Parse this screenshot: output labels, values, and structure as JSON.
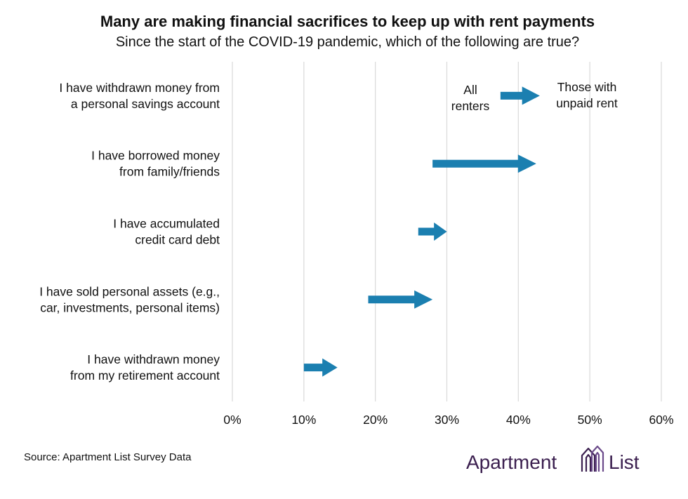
{
  "chart_data": {
    "type": "arrow",
    "title": "Many are making financial sacrifices to keep up with rent payments",
    "subtitle": "Since the start of the COVID-19 pandemic, which of the following are true?",
    "xlim": [
      0,
      60
    ],
    "x_ticks": [
      "0%",
      "10%",
      "20%",
      "30%",
      "40%",
      "50%",
      "60%"
    ],
    "grid": "vertical",
    "series": [
      {
        "name": "All renters"
      },
      {
        "name": "Those with unpaid rent"
      }
    ],
    "categories": [
      {
        "label_lines": [
          "I have withdrawn money from",
          "a personal savings account"
        ],
        "start": 37.5,
        "end": 43
      },
      {
        "label_lines": [
          "I have borrowed money",
          "from family/friends"
        ],
        "start": 28,
        "end": 42.5
      },
      {
        "label_lines": [
          "I have accumulated",
          "credit card debt"
        ],
        "start": 26,
        "end": 30
      },
      {
        "label_lines": [
          "I have sold personal assets (e.g.,",
          "car, investments, personal items)"
        ],
        "start": 19,
        "end": 28
      },
      {
        "label_lines": [
          "I have withdrawn money",
          "from my retirement account"
        ],
        "start": 10,
        "end": 14.7
      }
    ],
    "legend": {
      "start_label_lines": [
        "All",
        "renters"
      ],
      "end_label_lines": [
        "Those with",
        "unpaid rent"
      ],
      "placement": "top-right"
    },
    "arrow_color": "#1b7fb0"
  },
  "footer": {
    "source": "Source: Apartment List Survey Data",
    "logo_word_1": "Apartment",
    "logo_word_2": "List"
  },
  "colors": {
    "arrow": "#1b7fb0",
    "grid": "#d9d9d9",
    "brand": "#3b1f4f",
    "brand_accent": "#6b4a8a"
  },
  "logo_icon": "apartment-list-building-icon"
}
